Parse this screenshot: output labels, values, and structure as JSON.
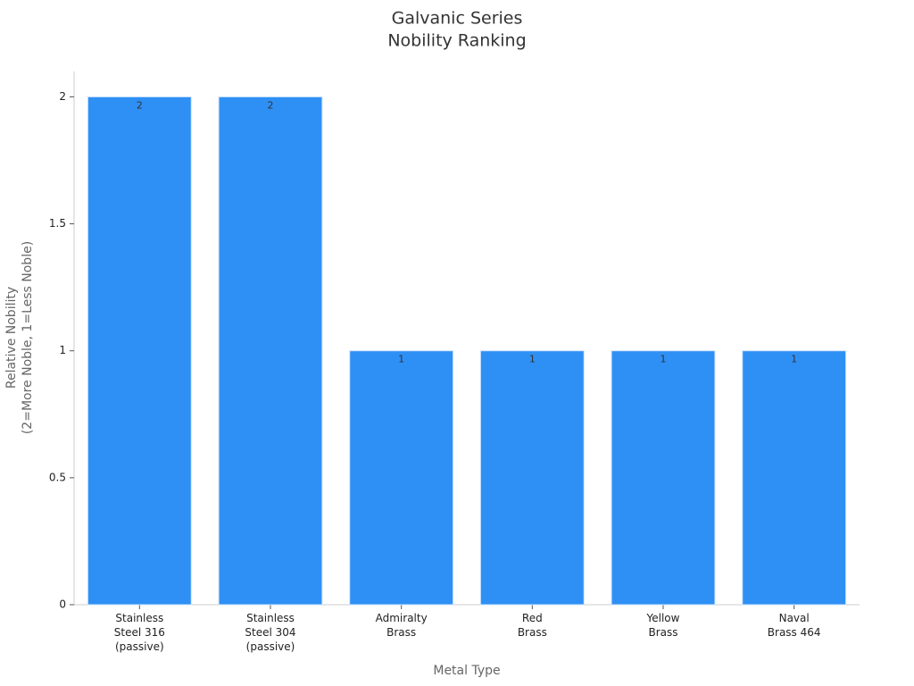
{
  "chart_data": {
    "type": "bar",
    "title": "Galvanic Series\nNobility Ranking",
    "x_label": "Metal Type",
    "y_label": "Relative Nobility\n(2=More Noble, 1=Less Noble)",
    "categories": [
      "Stainless\nSteel 316\n(passive)",
      "Stainless\nSteel 304\n(passive)",
      "Admiralty\nBrass",
      "Red\nBrass",
      "Yellow\nBrass",
      "Naval\nBrass 464"
    ],
    "values": [
      2,
      2,
      1,
      1,
      1,
      1
    ],
    "color": "#2e90f5",
    "ylim": [
      0,
      2.1
    ],
    "yticks": [
      0,
      0.5,
      1,
      1.5,
      2
    ],
    "grid": false
  }
}
